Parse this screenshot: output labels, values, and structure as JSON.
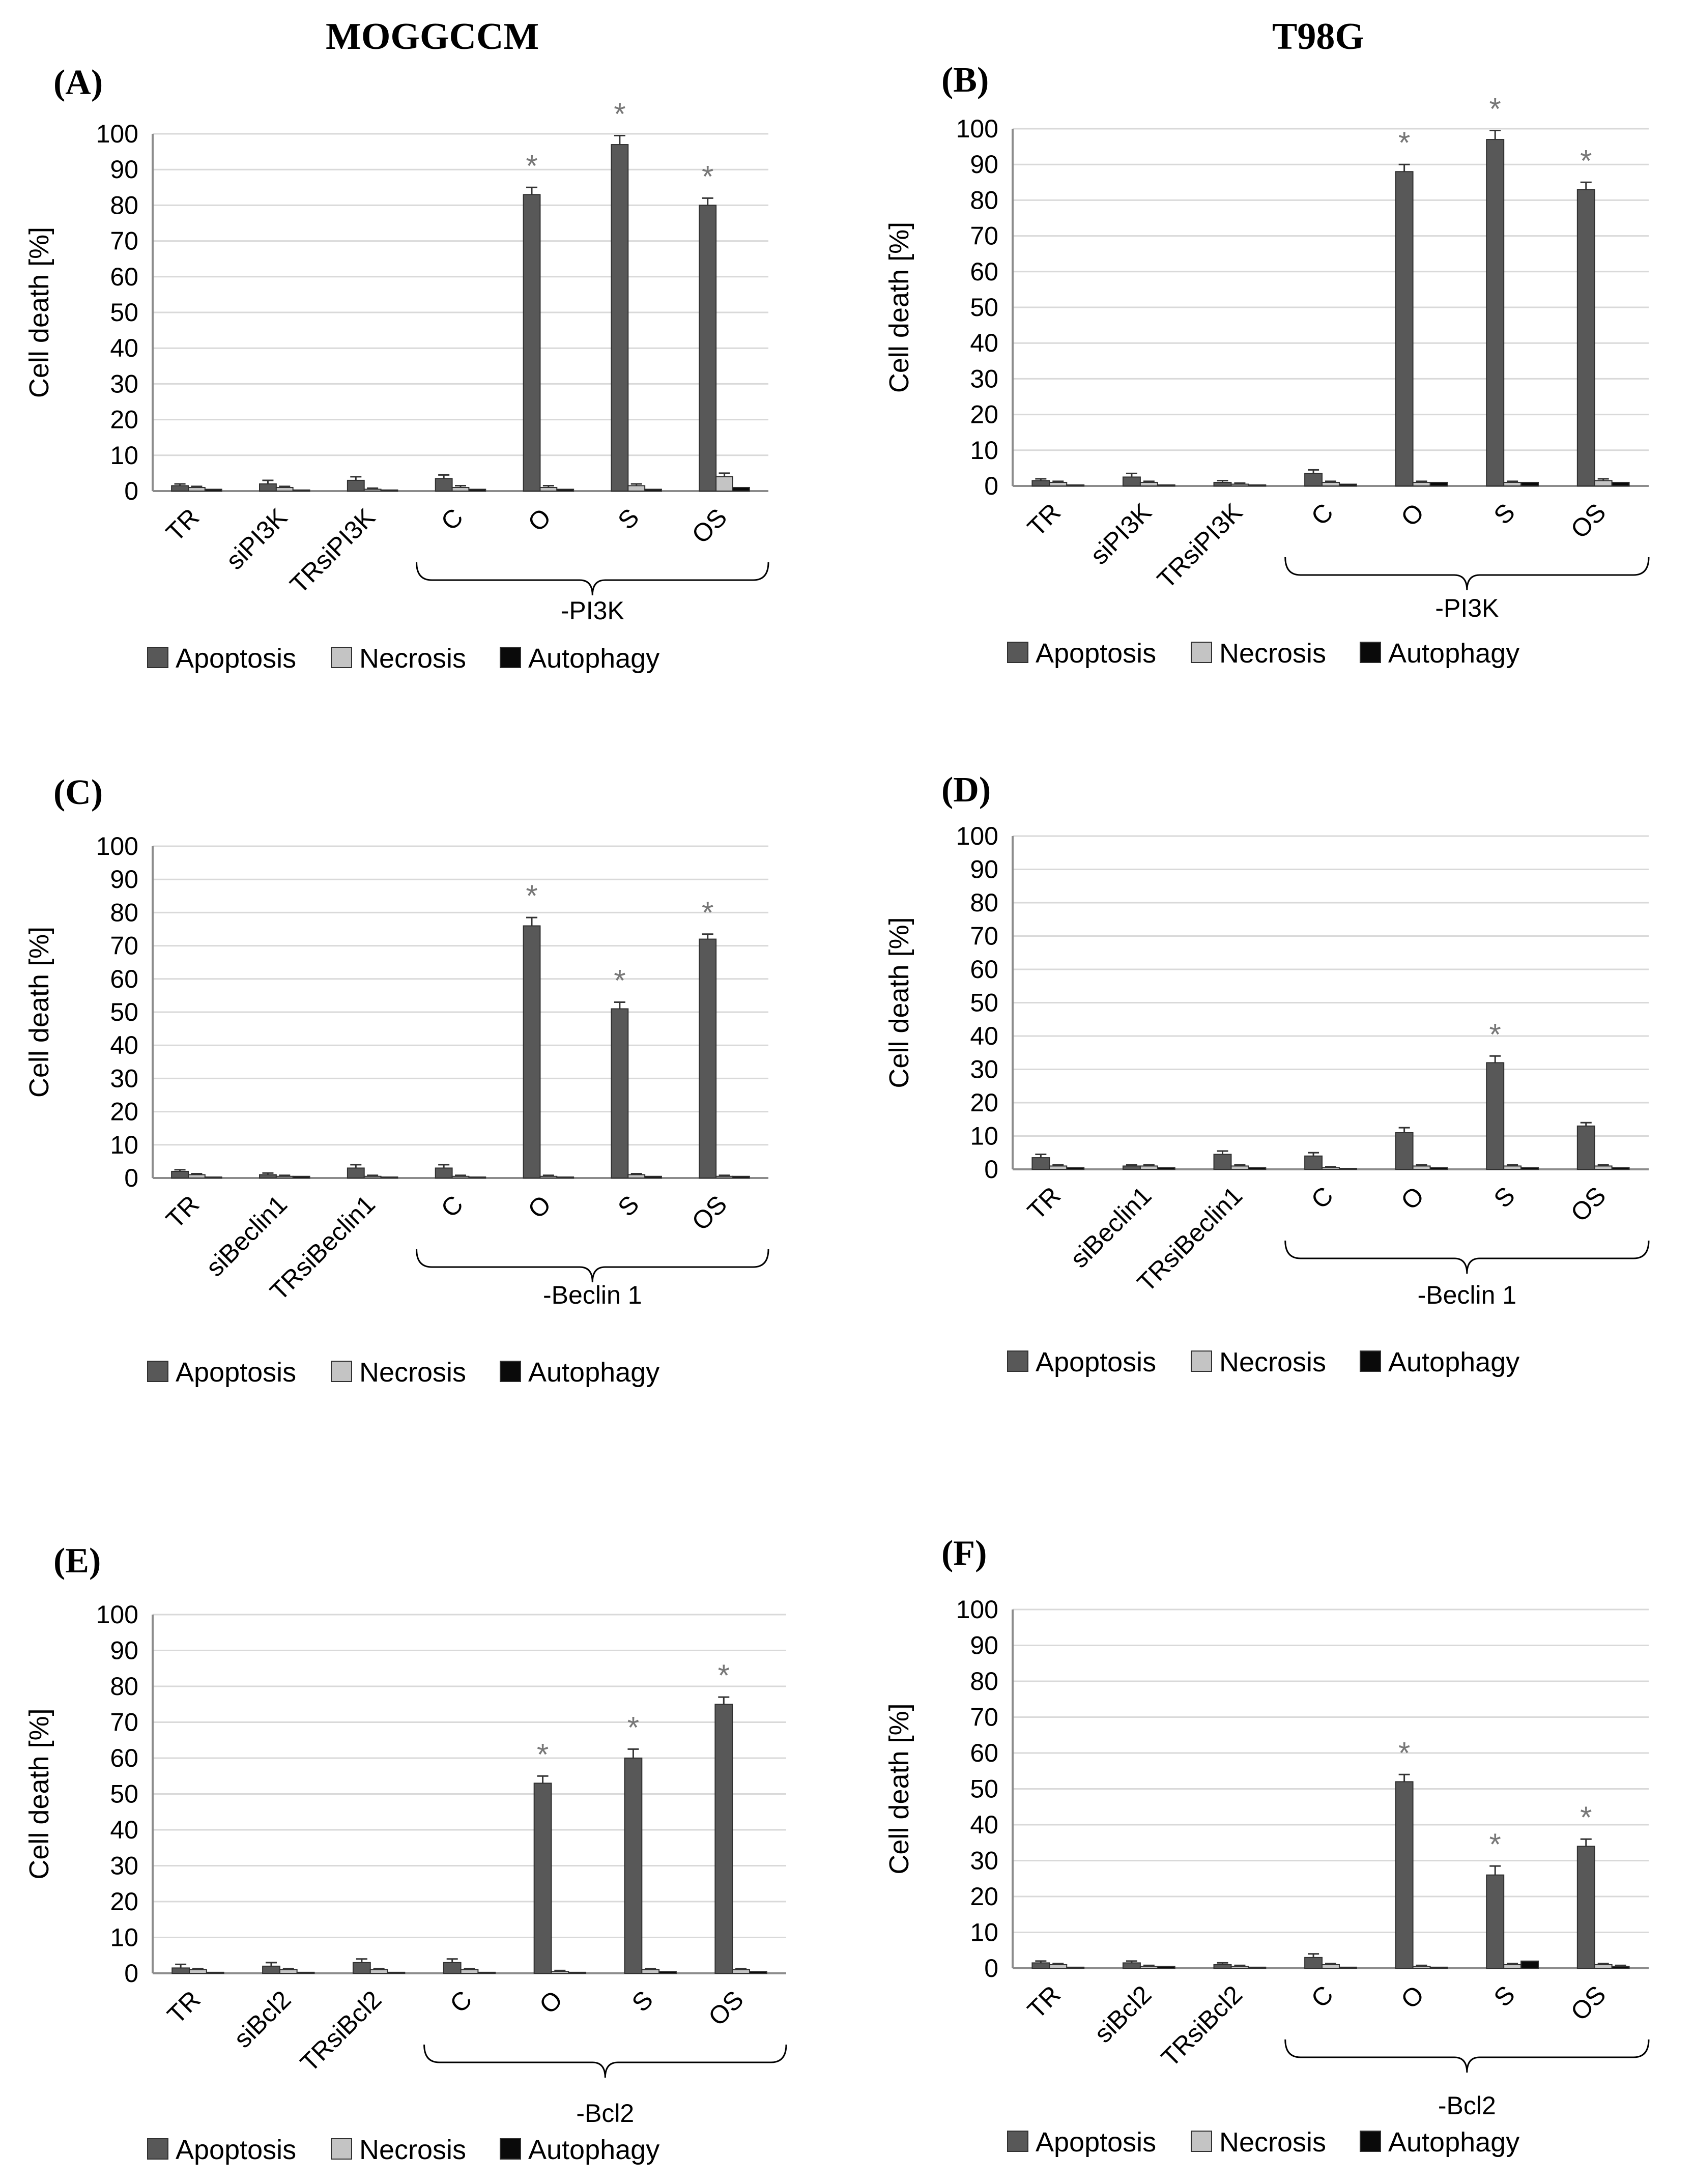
{
  "column_titles": {
    "left": "MOGGCCM",
    "right": "T98G"
  },
  "colors": {
    "apoptosis": "#585858",
    "necrosis": "#c4c4c4",
    "autophagy": "#0a0a0a",
    "grid": "#d9d9d9",
    "axis": "#8c8c8c",
    "star": "#777777"
  },
  "legend": [
    "Apoptosis",
    "Necrosis",
    "Autophagy"
  ],
  "chart_data": [
    {
      "panel": "(A)",
      "type": "bar",
      "ylabel": "Cell death [%]",
      "ylim": [
        0,
        100
      ],
      "yticks": [
        0,
        10,
        20,
        30,
        40,
        50,
        60,
        70,
        80,
        90,
        100
      ],
      "categories": [
        "TR",
        "siPI3K",
        "TRsiPI3K",
        "C",
        "O",
        "S",
        "OS"
      ],
      "group_label": "-PI3K",
      "series": [
        {
          "name": "Apoptosis",
          "values": [
            1.5,
            2,
            3,
            3.5,
            83,
            97,
            80
          ],
          "errors": [
            0.5,
            1,
            1,
            1,
            2,
            2.5,
            2
          ]
        },
        {
          "name": "Necrosis",
          "values": [
            1,
            1,
            0.5,
            1,
            1,
            1.5,
            4
          ],
          "errors": [
            0.3,
            0.3,
            0.3,
            0.5,
            0.5,
            0.5,
            1
          ]
        },
        {
          "name": "Autophagy",
          "values": [
            0.5,
            0.3,
            0.3,
            0.5,
            0.5,
            0.5,
            1
          ],
          "errors": [
            0,
            0,
            0,
            0,
            0,
            0,
            0
          ]
        }
      ],
      "significant": [
        "O",
        "S",
        "OS"
      ]
    },
    {
      "panel": "(B)",
      "type": "bar",
      "ylabel": "Cell death [%]",
      "ylim": [
        0,
        100
      ],
      "yticks": [
        0,
        10,
        20,
        30,
        40,
        50,
        60,
        70,
        80,
        90,
        100
      ],
      "categories": [
        "TR",
        "siPI3K",
        "TRsiPI3K",
        "C",
        "O",
        "S",
        "OS"
      ],
      "group_label": "-PI3K",
      "series": [
        {
          "name": "Apoptosis",
          "values": [
            1.5,
            2.5,
            1,
            3.5,
            88,
            97,
            83
          ],
          "errors": [
            0.5,
            1,
            0.5,
            1,
            2,
            2.5,
            2
          ]
        },
        {
          "name": "Necrosis",
          "values": [
            1,
            1,
            0.5,
            1,
            1,
            1,
            1.5
          ],
          "errors": [
            0.3,
            0.3,
            0.3,
            0.3,
            0.3,
            0.3,
            0.5
          ]
        },
        {
          "name": "Autophagy",
          "values": [
            0.3,
            0.3,
            0.3,
            0.5,
            1,
            1,
            1
          ],
          "errors": [
            0,
            0,
            0,
            0,
            0,
            0,
            0
          ]
        }
      ],
      "significant": [
        "O",
        "S",
        "OS"
      ]
    },
    {
      "panel": "(C)",
      "type": "bar",
      "ylabel": "Cell death [%]",
      "ylim": [
        0,
        100
      ],
      "yticks": [
        0,
        10,
        20,
        30,
        40,
        50,
        60,
        70,
        80,
        90,
        100
      ],
      "categories": [
        "TR",
        "siBeclin1",
        "TRsiBeclin1",
        "C",
        "O",
        "S",
        "OS"
      ],
      "group_label": "-Beclin 1",
      "series": [
        {
          "name": "Apoptosis",
          "values": [
            2,
            1,
            3,
            3,
            76,
            51,
            72
          ],
          "errors": [
            0.5,
            0.5,
            1,
            1,
            2.5,
            2,
            1.5
          ]
        },
        {
          "name": "Necrosis",
          "values": [
            1,
            0.5,
            0.5,
            0.5,
            0.5,
            1,
            0.5
          ],
          "errors": [
            0.3,
            0.3,
            0.3,
            0.3,
            0.3,
            0.3,
            0.3
          ]
        },
        {
          "name": "Autophagy",
          "values": [
            0.3,
            0.5,
            0.3,
            0.3,
            0.3,
            0.5,
            0.5
          ],
          "errors": [
            0,
            0,
            0,
            0,
            0,
            0,
            0
          ]
        }
      ],
      "significant": [
        "O",
        "S",
        "OS"
      ]
    },
    {
      "panel": "(D)",
      "type": "bar",
      "ylabel": "Cell death [%]",
      "ylim": [
        0,
        100
      ],
      "yticks": [
        0,
        10,
        20,
        30,
        40,
        50,
        60,
        70,
        80,
        90,
        100
      ],
      "categories": [
        "TR",
        "siBeclin1",
        "TRsiBeclin1",
        "C",
        "O",
        "S",
        "OS"
      ],
      "group_label": "-Beclin 1",
      "series": [
        {
          "name": "Apoptosis",
          "values": [
            3.5,
            1,
            4.5,
            4,
            11,
            32,
            13
          ],
          "errors": [
            1,
            0.3,
            1,
            1,
            1.5,
            2,
            1
          ]
        },
        {
          "name": "Necrosis",
          "values": [
            1,
            1,
            1,
            0.5,
            1,
            1,
            1
          ],
          "errors": [
            0.3,
            0.3,
            0.3,
            0.3,
            0.3,
            0.3,
            0.3
          ]
        },
        {
          "name": "Autophagy",
          "values": [
            0.5,
            0.5,
            0.5,
            0.3,
            0.5,
            0.5,
            0.5
          ],
          "errors": [
            0,
            0,
            0,
            0,
            0,
            0,
            0
          ]
        }
      ],
      "significant": [
        "S"
      ]
    },
    {
      "panel": "(E)",
      "type": "bar",
      "ylabel": "Cell death [%]",
      "ylim": [
        0,
        100
      ],
      "yticks": [
        0,
        10,
        20,
        30,
        40,
        50,
        60,
        70,
        80,
        90,
        100
      ],
      "categories": [
        "TR",
        "siBcl2",
        "TRsiBcl2",
        "C",
        "O",
        "S",
        "OS"
      ],
      "group_label": "-Bcl2",
      "series": [
        {
          "name": "Apoptosis",
          "values": [
            1.5,
            2,
            3,
            3,
            53,
            60,
            75
          ],
          "errors": [
            1,
            1,
            1,
            1,
            2,
            2.5,
            2
          ]
        },
        {
          "name": "Necrosis",
          "values": [
            1,
            1,
            1,
            1,
            0.5,
            1,
            1
          ],
          "errors": [
            0.3,
            0.3,
            0.3,
            0.3,
            0.3,
            0.3,
            0.3
          ]
        },
        {
          "name": "Autophagy",
          "values": [
            0.3,
            0.3,
            0.3,
            0.3,
            0.3,
            0.5,
            0.5
          ],
          "errors": [
            0,
            0,
            0,
            0,
            0,
            0,
            0
          ]
        }
      ],
      "significant": [
        "O",
        "S",
        "OS"
      ]
    },
    {
      "panel": "(F)",
      "type": "bar",
      "ylabel": "Cell death [%]",
      "ylim": [
        0,
        100
      ],
      "yticks": [
        0,
        10,
        20,
        30,
        40,
        50,
        60,
        70,
        80,
        90,
        100
      ],
      "categories": [
        "TR",
        "siBcl2",
        "TRsiBcl2",
        "C",
        "O",
        "S",
        "OS"
      ],
      "group_label": "-Bcl2",
      "series": [
        {
          "name": "Apoptosis",
          "values": [
            1.5,
            1.5,
            1,
            3,
            52,
            26,
            34
          ],
          "errors": [
            0.5,
            0.5,
            0.5,
            1,
            2,
            2.5,
            2
          ]
        },
        {
          "name": "Necrosis",
          "values": [
            1,
            0.5,
            0.5,
            1,
            0.5,
            1,
            1
          ],
          "errors": [
            0.3,
            0.3,
            0.3,
            0.3,
            0.3,
            0.3,
            0.3
          ]
        },
        {
          "name": "Autophagy",
          "values": [
            0.3,
            0.5,
            0.3,
            0.3,
            0.3,
            2,
            0.5
          ],
          "errors": [
            0,
            0,
            0,
            0,
            0,
            0,
            0.3
          ]
        }
      ],
      "significant": [
        "O",
        "S",
        "OS"
      ]
    }
  ]
}
